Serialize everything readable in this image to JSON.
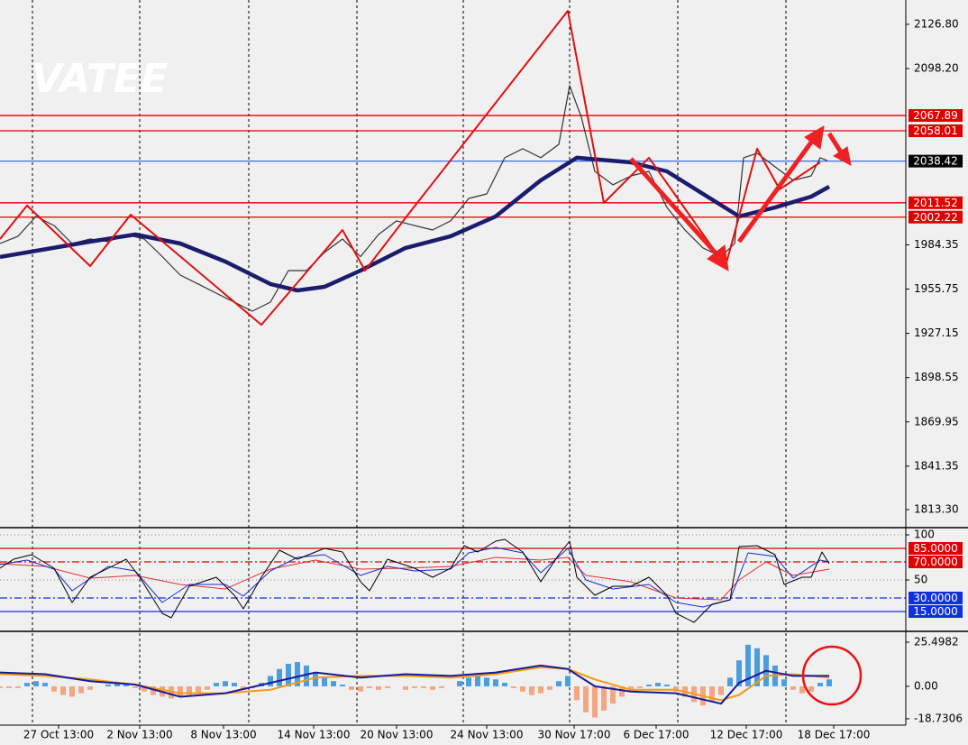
{
  "chart_data": [
    {
      "type": "line",
      "watermark": "VATEE",
      "xlim": [
        0,
        100.5
      ],
      "ylim": [
        1802.8,
        2142.5
      ],
      "yticks": [
        {
          "value": 2126.8,
          "label": "2126.80"
        },
        {
          "value": 2098.2,
          "label": "2098.20"
        },
        1984.35,
        1955.75,
        1927.15,
        1898.55,
        1869.95,
        1841.35,
        {
          "value": 1813.3,
          "label": "1813.30"
        }
      ],
      "separators": [
        3.6,
        15.5,
        27.6,
        39.6,
        51.4,
        63.2,
        75.2,
        87.2
      ],
      "levels": [
        {
          "value": 2067.89,
          "color": "#e00000",
          "box_color": "#e00000"
        },
        {
          "value": 2058.01,
          "color": "#e00000",
          "box_color": "#e00000"
        },
        {
          "value": 2038.42,
          "color": "#3a6ee8",
          "box_color": "#000000"
        },
        {
          "value": 2011.52,
          "color": "#e00000",
          "box_color": "#e00000"
        },
        {
          "value": 2002.22,
          "color": "#e00000",
          "box_color": "#e00000"
        }
      ],
      "series": [
        {
          "color": "#333333",
          "width": 1.2,
          "x": [
            0,
            2,
            4,
            6,
            8,
            10,
            12,
            14,
            16,
            18,
            20,
            22,
            24,
            26,
            28,
            30,
            32,
            34,
            36,
            38,
            40,
            42,
            44,
            46,
            48,
            50,
            52,
            54,
            56,
            58,
            60,
            62,
            63.2,
            64.5,
            66,
            68,
            70,
            72,
            74,
            76,
            78,
            80,
            81.5,
            82.5,
            84,
            86,
            88,
            90,
            91,
            91.8
          ],
          "values": [
            1985.2,
            1989.9,
            2002.7,
            1996.8,
            1985.2,
            1988.1,
            1986.4,
            1991.0,
            1988.1,
            1976.7,
            1964.8,
            1959.0,
            1953.1,
            1947.3,
            1941.5,
            1947.3,
            1967.7,
            1967.7,
            1979.4,
            1988.1,
            1976.7,
            1991.0,
            1999.8,
            1996.8,
            1993.9,
            1999.8,
            2014.3,
            2017.2,
            2040.6,
            2046.4,
            2040.6,
            2049.3,
            2087.2,
            2066.8,
            2031.8,
            2023.1,
            2028.9,
            2031.8,
            2008.5,
            1993.9,
            1982.3,
            1976.7,
            1985.2,
            2040.6,
            2043.5,
            2034.7,
            2026.0,
            2028.9,
            2040.6,
            2038.8
          ]
        },
        {
          "color": "#1c1c6e",
          "width": 4.5,
          "x": [
            0,
            10,
            15,
            20,
            25,
            30,
            33,
            36,
            40,
            45,
            50,
            55,
            60,
            64,
            70,
            74,
            78,
            82,
            86,
            90,
            92
          ],
          "values": [
            1976.5,
            1986.4,
            1991.0,
            1985.2,
            1973.5,
            1959.0,
            1954.9,
            1957.2,
            1967.7,
            1982.3,
            1989.9,
            2002.7,
            2026.0,
            2040.6,
            2037.6,
            2031.8,
            2017.2,
            2002.7,
            2008.5,
            2015.5,
            2021.9
          ]
        },
        {
          "color": "#e01010",
          "width": 2,
          "x": [
            0,
            3,
            10,
            14.5,
            29,
            38,
            40.5,
            45.5,
            63,
            67,
            72,
            80.5,
            82,
            84,
            86.5,
            91
          ],
          "values": [
            1988.1,
            2009.7,
            1970.6,
            2003.8,
            1932.7,
            1993.9,
            1967.7,
            2005.6,
            2135.5,
            2011.4,
            2040.6,
            1970.6,
            2002.7,
            2046.4,
            2020.2,
            2037.6
          ]
        }
      ]
    },
    {
      "type": "line",
      "xlim": [
        0,
        100.5
      ],
      "ylim": [
        -5,
        105
      ],
      "yticks": [
        100,
        50
      ],
      "grid": true,
      "levels": [
        {
          "value": 85,
          "label": "85.0000",
          "color": "#e00000",
          "box_color": "#e00000",
          "dash": false
        },
        {
          "value": 70,
          "label": "70.0000",
          "color": "#e00000",
          "box_color": "#e00000",
          "dash": true
        },
        {
          "value": 30,
          "label": "30.0000",
          "color": "#1030e0",
          "box_color": "#1030e0",
          "dash": true
        },
        {
          "value": 15,
          "label": "15.0000",
          "color": "#1030e0",
          "box_color": "#1030e0",
          "dash": false
        }
      ],
      "series": [
        {
          "color": "#e03030",
          "width": 1,
          "x": [
            0,
            5,
            10,
            15,
            20,
            25,
            30,
            35,
            40,
            45,
            50,
            55,
            60,
            63,
            65,
            70,
            75,
            80,
            82,
            85,
            88,
            92
          ],
          "values": [
            68,
            65,
            52,
            55,
            45,
            40,
            62,
            72,
            62,
            63,
            65,
            75,
            72,
            75,
            55,
            48,
            30,
            28,
            50,
            70,
            55,
            62
          ]
        },
        {
          "color": "#1a2ad0",
          "width": 1,
          "x": [
            0,
            3,
            6,
            8,
            12,
            15,
            18,
            21,
            25,
            27,
            30,
            33,
            36,
            40,
            43,
            46,
            50,
            52,
            55,
            58,
            60,
            63,
            65,
            68,
            72,
            75,
            78,
            81,
            83,
            86,
            88,
            91,
            92
          ],
          "values": [
            67,
            72,
            62,
            38,
            65,
            60,
            25,
            45,
            45,
            32,
            60,
            75,
            78,
            55,
            65,
            60,
            62,
            80,
            86,
            80,
            58,
            85,
            50,
            40,
            45,
            25,
            20,
            28,
            80,
            76,
            52,
            72,
            70
          ]
        },
        {
          "color": "#000000",
          "width": 1,
          "x": [
            0,
            1.5,
            3.5,
            6,
            8,
            10,
            14,
            15.5,
            18,
            19,
            21,
            24,
            26,
            27,
            29,
            31,
            33,
            36,
            38,
            40,
            41,
            43,
            46,
            48,
            50,
            51.5,
            53,
            55,
            56,
            58,
            60,
            62,
            63.2,
            64,
            66,
            68,
            70,
            72,
            74,
            75,
            77,
            79,
            81,
            82,
            84,
            86,
            87,
            89,
            90,
            91.2,
            92
          ],
          "values": [
            63,
            73,
            78,
            63,
            25,
            53,
            73,
            53,
            13,
            8,
            43,
            53,
            33,
            18,
            53,
            83,
            73,
            85,
            81,
            48,
            38,
            73,
            63,
            53,
            63,
            88,
            81,
            93,
            95,
            81,
            48,
            78,
            93,
            53,
            33,
            43,
            43,
            53,
            33,
            13,
            3,
            23,
            28,
            87,
            88,
            78,
            45,
            53,
            53,
            81,
            68
          ]
        }
      ]
    },
    {
      "type": "bar",
      "xlim": [
        0,
        100.5
      ],
      "ylim": [
        -21.9,
        30.7
      ],
      "yticks": [
        25.4982,
        {
          "value": 0,
          "label": "0.00"
        },
        -18.7306
      ],
      "xticks": [
        {
          "value": 6.5,
          "label": "27 Oct 13:00"
        },
        {
          "value": 15.5,
          "label": "2 Nov 13:00"
        },
        {
          "value": 24.8,
          "label": "8 Nov 13:00"
        },
        {
          "value": 34.8,
          "label": "14 Nov 13:00"
        },
        {
          "value": 44,
          "label": "20 Nov 13:00"
        },
        {
          "value": 54,
          "label": "24 Nov 13:00"
        },
        {
          "value": 63.7,
          "label": "30 Nov 17:00"
        },
        {
          "value": 72.8,
          "label": "6 Dec 17:00"
        },
        {
          "value": 82.8,
          "label": "12 Dec 17:00"
        },
        {
          "value": 92.5,
          "label": "18 Dec 17:00"
        }
      ],
      "positive_color": "#4a9ee0",
      "negative_color": "#f4a582",
      "x": [
        0,
        1,
        2,
        3,
        4,
        5,
        6,
        7,
        8,
        9,
        10,
        11,
        12,
        13,
        14,
        15,
        16,
        17,
        18,
        19,
        20,
        21,
        22,
        23,
        24,
        25,
        26,
        27,
        28,
        29,
        30,
        31,
        32,
        33,
        34,
        35,
        36,
        37,
        38,
        39,
        40,
        41,
        42,
        43,
        44,
        45,
        46,
        47,
        48,
        49,
        50,
        51,
        52,
        53,
        54,
        55,
        56,
        57,
        58,
        59,
        60,
        61,
        62,
        63,
        64,
        65,
        66,
        67,
        68,
        69,
        70,
        71,
        72,
        73,
        74,
        75,
        76,
        77,
        78,
        79,
        80,
        81,
        82,
        83,
        84,
        85,
        86,
        87,
        88,
        89,
        90,
        91,
        92
      ],
      "values": [
        -1,
        -1,
        -1,
        2,
        3,
        2,
        -3,
        -5,
        -6,
        -4,
        -2,
        0,
        1,
        2,
        1,
        -1,
        -3,
        -5,
        -6,
        -7,
        -6,
        -5,
        -4,
        -2,
        2,
        3,
        2,
        -2,
        -1,
        2,
        6,
        10,
        13,
        14,
        12,
        8,
        5,
        3,
        1,
        -2,
        -3,
        -1,
        -2,
        -1,
        0,
        -2,
        -1,
        -1,
        -2,
        -1,
        0,
        3,
        5,
        6,
        5,
        4,
        2,
        -1,
        -3,
        -5,
        -4,
        -2,
        3,
        6,
        -8,
        -15,
        -18,
        -14,
        -10,
        -6,
        -3,
        -1,
        1,
        2,
        1,
        -3,
        -6,
        -9,
        -11,
        -9,
        -5,
        5,
        15,
        24,
        22,
        18,
        12,
        4,
        -2,
        -4,
        -3,
        2,
        4
      ],
      "series": [
        {
          "color": "#f39c12",
          "width": 2,
          "x": [
            0,
            5,
            10,
            15,
            20,
            25,
            30,
            35,
            40,
            45,
            50,
            55,
            60,
            63,
            66,
            70,
            75,
            80,
            82,
            85,
            88,
            92
          ],
          "values": [
            7,
            6,
            4,
            1,
            -4,
            -4,
            -2,
            5,
            6,
            6,
            5,
            7,
            11,
            10,
            4,
            -2,
            -2,
            -8,
            -5,
            6,
            7,
            5
          ]
        },
        {
          "color": "#1a1a9a",
          "width": 2,
          "x": [
            0,
            5,
            10,
            15,
            20,
            25,
            30,
            35,
            40,
            45,
            50,
            55,
            60,
            63,
            66,
            70,
            75,
            80,
            82,
            85,
            88,
            92
          ],
          "values": [
            8,
            7,
            3,
            1,
            -6,
            -4,
            2,
            8,
            5,
            7,
            6,
            8,
            12,
            10,
            0,
            -3,
            -4,
            -10,
            2,
            9,
            6,
            6
          ]
        }
      ]
    }
  ]
}
